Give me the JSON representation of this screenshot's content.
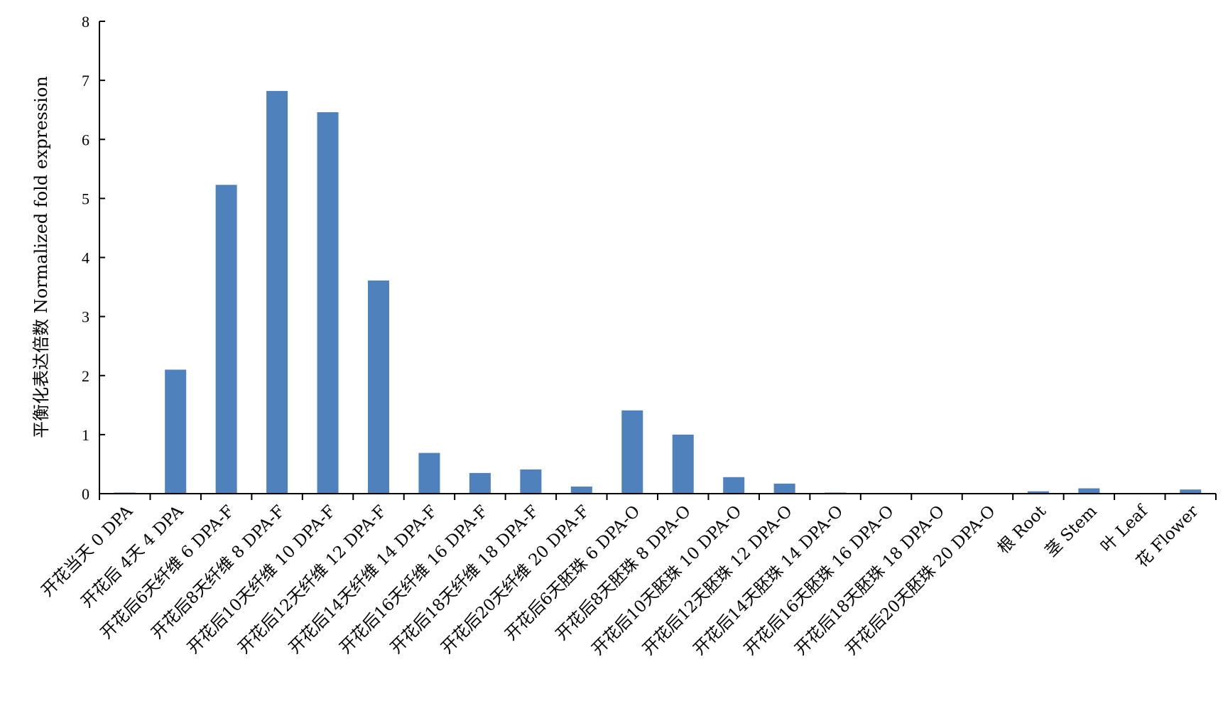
{
  "chart_data": {
    "type": "bar",
    "title": "",
    "xlabel": "",
    "ylabel": "平衡化表达倍数 Normalized fold expression",
    "ylim": [
      0,
      8
    ],
    "yticks": [
      0,
      1,
      2,
      3,
      4,
      5,
      6,
      7,
      8
    ],
    "grid": false,
    "legend": "none",
    "bar_color": "#4f81bd",
    "categories": [
      "开花当天 0 DPA",
      "开花后 4天 4 DPA",
      "开花后6天纤维 6 DPA-F",
      "开花后8天纤维 8 DPA-F",
      "开花后10天纤维 10 DPA-F",
      "开花后12天纤维 12 DPA-F",
      "开花后14天纤维 14 DPA-F",
      "开花后16天纤维 16 DPA-F",
      "开花后18天纤维 18 DPA-F",
      "开花后20天纤维 20 DPA-F",
      "开花后6天胚珠 6 DPA-O",
      "开花后8天胚珠 8 DPA-O",
      "开花后10天胚珠 10 DPA-O",
      "开花后12天胚珠 12 DPA-O",
      "开花后14天胚珠 14 DPA-O",
      "开花后16天胚珠 16 DPA-O",
      "开花后18天胚珠 18 DPA-O",
      "开花后20天胚珠 20 DPA-O",
      "根 Root",
      "茎 Stem",
      "叶 Leaf",
      "花 Flower"
    ],
    "values": [
      0.01,
      2.1,
      5.23,
      6.82,
      6.46,
      3.61,
      0.69,
      0.35,
      0.41,
      0.12,
      1.41,
      1.0,
      0.28,
      0.17,
      0.01,
      0.0,
      0.0,
      0.0,
      0.04,
      0.09,
      0.0,
      0.07
    ]
  }
}
